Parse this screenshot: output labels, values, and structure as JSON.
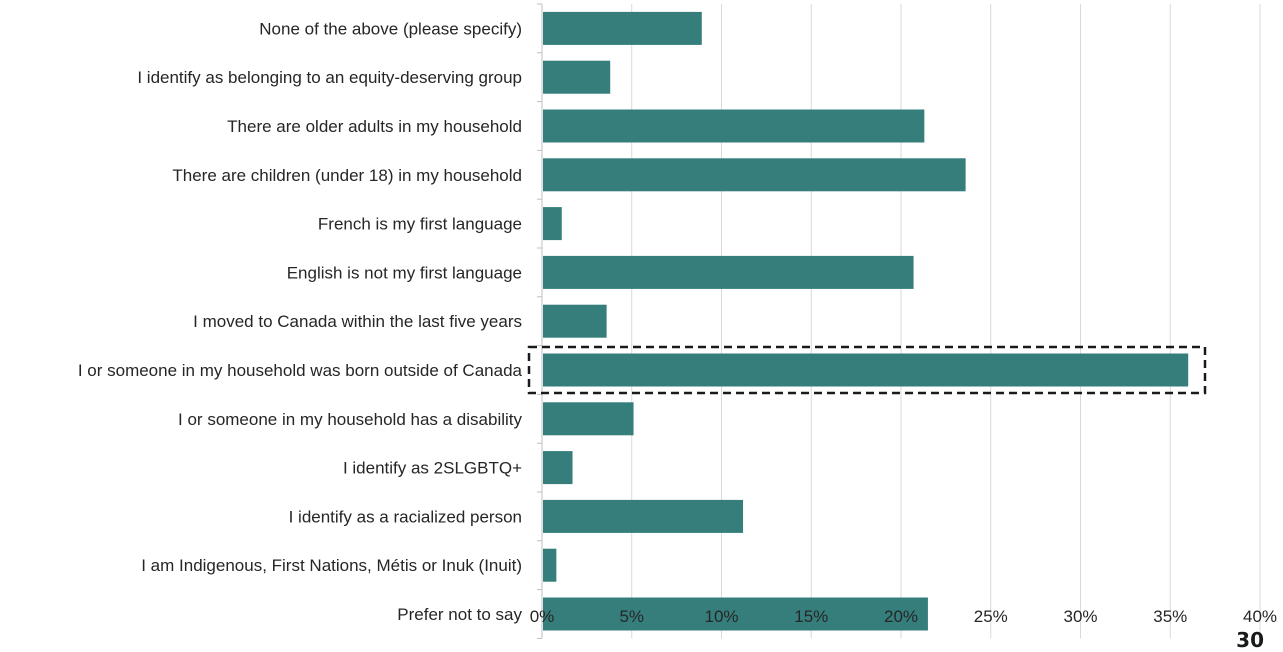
{
  "page_number": "30",
  "colors": {
    "bar": "#357E7B",
    "highlight_border": "#1a1a1a",
    "grid": "#d9d9d9"
  },
  "chart_data": {
    "type": "bar",
    "orientation": "horizontal",
    "categories": [
      "None of the above (please specify)",
      "I identify as belonging to an equity-deserving group",
      "There are older adults in my household",
      "There are children (under 18) in my household",
      "French is my first language",
      "English is not my first language",
      "I moved to Canada within the last five years",
      "I or someone in my household was born outside of Canada",
      "I or someone in my household has a disability",
      "I identify as 2SLGBTQ+",
      "I identify as a racialized person",
      "I am Indigenous, First Nations, Métis or Inuk (Inuit)",
      "Prefer not to say"
    ],
    "values": [
      8.9,
      3.8,
      21.3,
      23.6,
      1.1,
      20.7,
      3.6,
      36.0,
      5.1,
      1.7,
      11.2,
      0.8,
      21.5
    ],
    "xlim": [
      0,
      40
    ],
    "xticks": [
      "0%",
      "5%",
      "10%",
      "15%",
      "20%",
      "25%",
      "30%",
      "35%",
      "40%"
    ],
    "grid": true,
    "highlighted_category": "I or someone in my household was born outside of Canada",
    "title": "",
    "xlabel": "",
    "ylabel": ""
  }
}
